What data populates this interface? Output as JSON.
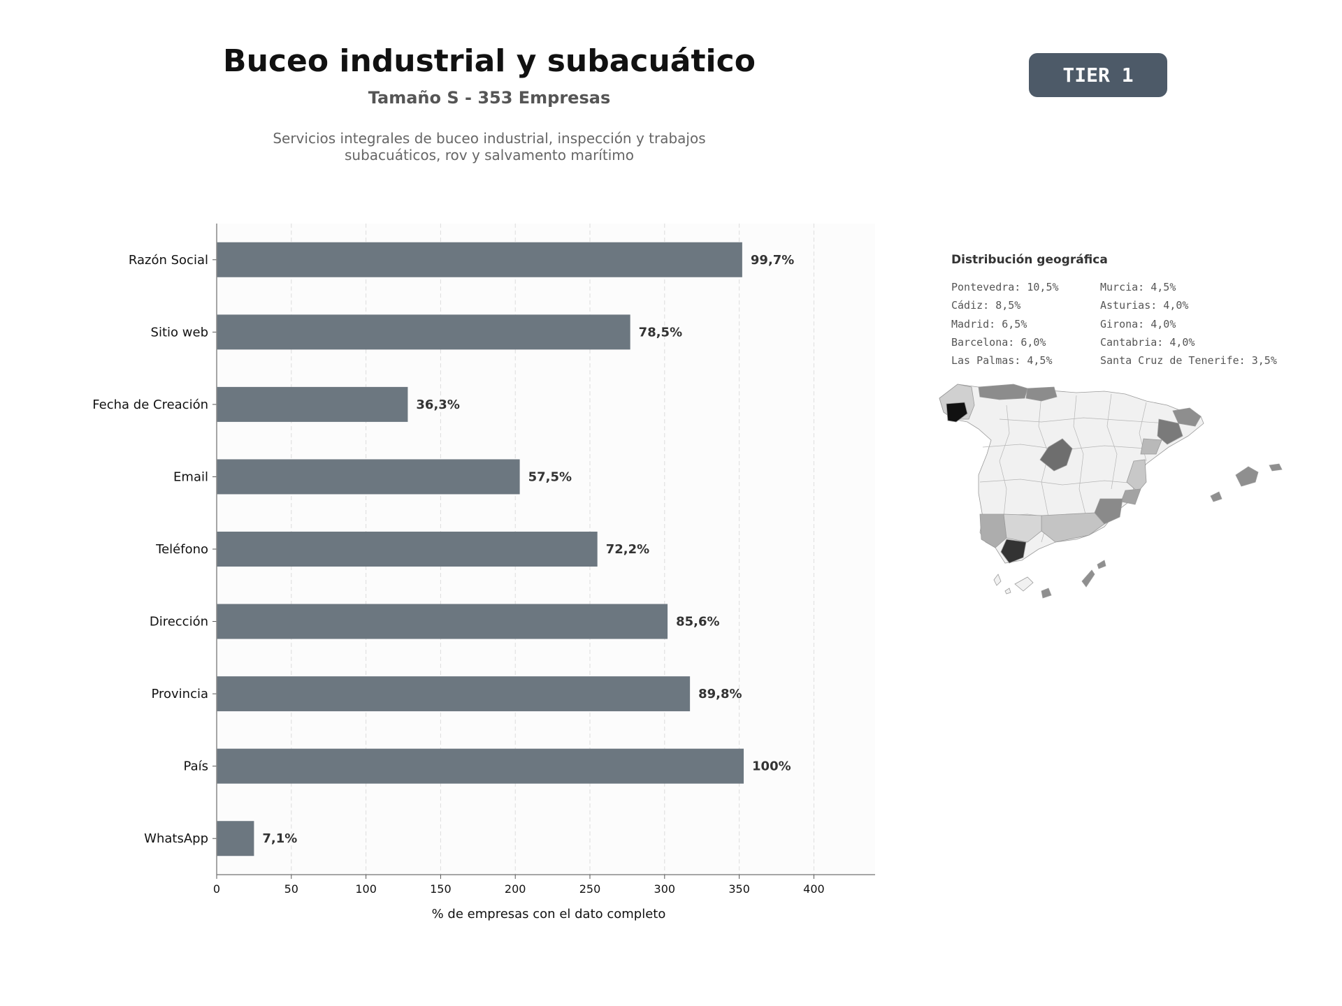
{
  "header": {
    "title": "Buceo industrial y subacuático",
    "subtitle": "Tamaño S - 353 Empresas",
    "description_lines": [
      "Servicios integrales de buceo industrial, inspección y trabajos",
      "subacuáticos, rov y salvamento marítimo"
    ]
  },
  "badge": {
    "label": "TIER 1",
    "color": "#4d5a68"
  },
  "colors": {
    "bar": "#6c7780",
    "plot_bg": "#fcfcfc",
    "label": "#333333"
  },
  "chart_data": {
    "type": "bar",
    "orientation": "horizontal",
    "categories": [
      "Razón Social",
      "Sitio web",
      "Fecha de Creación",
      "Email",
      "Teléfono",
      "Dirección",
      "Provincia",
      "País",
      "WhatsApp"
    ],
    "values": [
      352,
      277,
      128,
      203,
      255,
      302,
      317,
      353,
      25
    ],
    "value_labels": [
      "99,7%",
      "78,5%",
      "36,3%",
      "57,5%",
      "72,2%",
      "85,6%",
      "89,8%",
      "100%",
      "7,1%"
    ],
    "xlabel": "% de empresas con el dato completo",
    "xlim": [
      0,
      441
    ],
    "xticks": [
      0,
      50,
      100,
      150,
      200,
      250,
      300,
      350,
      400
    ],
    "grid": "vertical dashed"
  },
  "geo": {
    "title": "Distribución geográfica",
    "col1": [
      "Pontevedra: 10,5%",
      "Cádiz: 8,5%",
      "Madrid: 6,5%",
      "Barcelona: 6,0%",
      "Las Palmas: 4,5%"
    ],
    "col2": [
      "Murcia: 4,5%",
      "Asturias: 4,0%",
      "Girona: 4,0%",
      "Cantabria: 4,0%",
      "Santa Cruz de Tenerife: 3,5%"
    ]
  }
}
